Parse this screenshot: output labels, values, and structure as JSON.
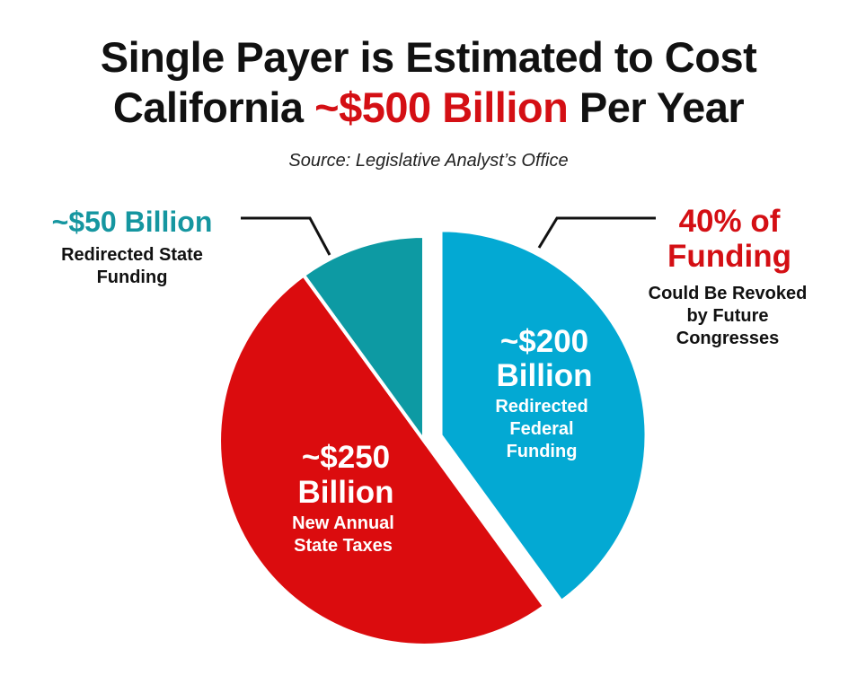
{
  "title": {
    "before": "Single Payer is Estimated to Cost",
    "line2_prefix": "California ",
    "highlight": "~$500 Billion",
    "line2_suffix": " Per Year"
  },
  "source": "Source: Legislative Analyst’s Office",
  "colors": {
    "federal": "#03a9d3",
    "state_taxes": "#db0c0e",
    "state_funding": "#0d9aa3",
    "accent_red": "#d40f14",
    "teal_text": "#1596a0"
  },
  "chart_data": {
    "type": "pie",
    "total_label": "~$500 Billion",
    "slices": [
      {
        "key": "federal",
        "value": 200,
        "amount_line1": "~$200",
        "amount_line2": "Billion",
        "desc": [
          "Redirected",
          "Federal",
          "Funding"
        ],
        "exploded": true
      },
      {
        "key": "state_taxes",
        "value": 250,
        "amount_line1": "~$250",
        "amount_line2": "Billion",
        "desc": [
          "New Annual",
          "State Taxes"
        ],
        "exploded": false
      },
      {
        "key": "state_funding",
        "value": 50,
        "amount_line1": "~$50 Billion",
        "desc": [
          "Redirected State",
          "Funding"
        ],
        "exploded": false
      }
    ],
    "callout": {
      "line1": "40% of",
      "line2": "Funding",
      "desc": [
        "Could Be Revoked",
        "by Future",
        "Congresses"
      ]
    }
  }
}
